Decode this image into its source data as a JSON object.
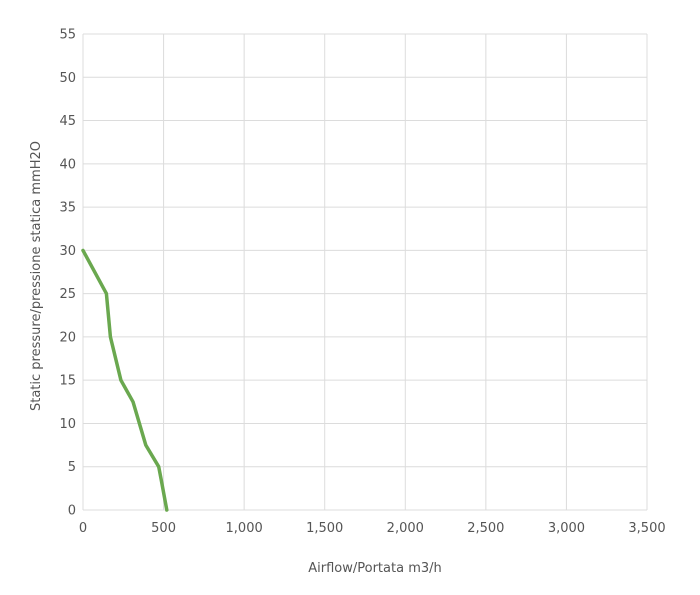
{
  "chart_data": {
    "type": "line",
    "title": "",
    "xlabel": "Airflow/Portata m3/h",
    "ylabel": "Static pressure/pressione statica mmH2O",
    "xlim": [
      0,
      3500
    ],
    "ylim": [
      0,
      55
    ],
    "x_ticks": [
      0,
      500,
      1000,
      1500,
      2000,
      2500,
      3000,
      3500
    ],
    "x_tick_labels": [
      "0",
      "500",
      "1,000",
      "1,500",
      "2,000",
      "2,500",
      "3,000",
      "3,500"
    ],
    "y_ticks": [
      0,
      5,
      10,
      15,
      20,
      25,
      30,
      35,
      40,
      45,
      50,
      55
    ],
    "y_tick_labels": [
      "0",
      "5",
      "10",
      "15",
      "20",
      "25",
      "30",
      "35",
      "40",
      "45",
      "50",
      "55"
    ],
    "grid": true,
    "legend": "none",
    "series": [
      {
        "color": "#6aa84f",
        "x": [
          0,
          145,
          170,
          235,
          310,
          390,
          470,
          485,
          520
        ],
        "y": [
          30,
          25,
          20,
          15,
          12.5,
          7.5,
          5,
          3.5,
          0
        ]
      }
    ]
  }
}
